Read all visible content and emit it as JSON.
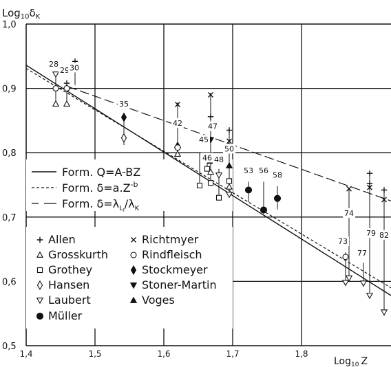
{
  "chart_data": {
    "type": "scatter",
    "ylabel_main": "Log",
    "ylabel_sub": "10",
    "ylabel_var": "δ",
    "ylabel_varsub": "K",
    "xlabel_main": "Log",
    "xlabel_sub": "10",
    "xlabel_var": "Z",
    "xlim": [
      1.4,
      1.93
    ],
    "ylim": [
      0.5,
      1.0
    ],
    "x_ticks": [
      "1,4",
      "1,5",
      "1,6",
      "1,7",
      "1,8"
    ],
    "x_tick_values": [
      1.4,
      1.5,
      1.6,
      1.7,
      1.8
    ],
    "y_ticks": [
      "1,0",
      "0,9",
      "0,8",
      "0,7",
      "0,6",
      "0,5"
    ],
    "y_tick_values": [
      1.0,
      0.9,
      0.8,
      0.7,
      0.6,
      0.5
    ],
    "grid": true,
    "fit_lines": [
      {
        "label": "Form. Q=A-BZ",
        "style": "solid",
        "x": [
          1.4,
          1.93
        ],
        "y": [
          0.936,
          0.578
        ]
      },
      {
        "label": "Form. δ=a.Z",
        "label_sup": "-b",
        "style": "dashed",
        "x": [
          1.4,
          1.93
        ],
        "y": [
          0.931,
          0.59
        ]
      },
      {
        "label": "Form. δ=λ",
        "label_sub1": "L",
        "label_sub1b": "I",
        "label_mid": "/λ",
        "label_sub2": "K",
        "style": "longdash",
        "x": [
          1.46,
          1.93
        ],
        "y": [
          0.903,
          0.725
        ]
      }
    ],
    "legend": [
      {
        "marker": "plus",
        "label": "Allen"
      },
      {
        "marker": "tri-open",
        "label": "Grosskurth"
      },
      {
        "marker": "square-open",
        "label": "Grothey"
      },
      {
        "marker": "diamond-open",
        "label": "Hansen"
      },
      {
        "marker": "tri-down-open",
        "label": "Laubert"
      },
      {
        "marker": "circle-filled",
        "label": "Müller"
      },
      {
        "marker": "cross",
        "label": "Richtmyer"
      },
      {
        "marker": "circle-open",
        "label": "Rindfleisch"
      },
      {
        "marker": "diamond-filled",
        "label": "Stockmeyer"
      },
      {
        "marker": "tri-down-filled",
        "label": "Stoner-Martin"
      },
      {
        "marker": "tri-filled",
        "label": "Voges"
      }
    ],
    "groups": [
      {
        "label": "28",
        "label_x": 1.44,
        "label_y": 0.934,
        "x": 1.443,
        "y_min": 0.876,
        "y_max": 0.924,
        "points": [
          {
            "m": "tri-down-open",
            "y": 0.922
          },
          {
            "m": "circle-open",
            "y": 0.9
          },
          {
            "m": "tri-open",
            "y": 0.876
          }
        ]
      },
      {
        "label": "29",
        "label_x": 1.456,
        "label_y": 0.924,
        "x": 1.459,
        "y_min": 0.876,
        "y_max": 0.912,
        "points": [
          {
            "m": "plus",
            "y": 0.908
          },
          {
            "m": "circle-open",
            "y": 0.9
          },
          {
            "m": "tri-open",
            "y": 0.876
          }
        ]
      },
      {
        "label": "30",
        "label_x": 1.47,
        "label_y": 0.928,
        "x": 1.471,
        "y_min": 0.905,
        "y_max": 0.944,
        "points": [
          {
            "m": "plus",
            "y": 0.942
          }
        ]
      },
      {
        "label": "35",
        "label_x": 1.542,
        "label_y": 0.872,
        "x": 1.542,
        "y_min": 0.812,
        "y_max": 0.86,
        "points": [
          {
            "m": "diamond-filled",
            "y": 0.855
          },
          {
            "m": "diamond-open",
            "y": 0.823
          }
        ]
      },
      {
        "label": "42",
        "label_x": 1.62,
        "label_y": 0.842,
        "x": 1.62,
        "y_min": 0.796,
        "y_max": 0.878,
        "points": [
          {
            "m": "cross",
            "y": 0.875
          },
          {
            "m": "tri-filled",
            "y": 0.812
          },
          {
            "m": "circle-open",
            "y": 0.808
          },
          {
            "m": "tri-open",
            "y": 0.798
          }
        ]
      },
      {
        "label": "45",
        "label_x": 1.658,
        "label_y": 0.816,
        "x": 1.652,
        "y_min": 0.747,
        "y_max": 0.8,
        "points": [
          {
            "m": "square-open",
            "y": 0.749
          }
        ]
      },
      {
        "label": "46",
        "label_x": 1.663,
        "label_y": 0.788,
        "x": 1.663,
        "y_min": 0.772,
        "y_max": 0.79,
        "points": [
          {
            "m": "square-open",
            "y": 0.775
          }
        ]
      },
      {
        "label": "47",
        "label_x": 1.671,
        "label_y": 0.837,
        "x": 1.668,
        "y_min": 0.752,
        "y_max": 0.893,
        "points": [
          {
            "m": "cross",
            "y": 0.89
          },
          {
            "m": "plus",
            "y": 0.856
          },
          {
            "m": "tri-down-filled",
            "y": 0.839
          },
          {
            "m": "tri-down-filled",
            "y": 0.82
          },
          {
            "m": "tri-filled",
            "y": 0.787
          },
          {
            "m": "tri-open",
            "y": 0.77
          },
          {
            "m": "square-open",
            "y": 0.753
          }
        ]
      },
      {
        "label": "48",
        "label_x": 1.68,
        "label_y": 0.785,
        "x": 1.68,
        "y_min": 0.728,
        "y_max": 0.775,
        "points": [
          {
            "m": "tri-down-open",
            "y": 0.765
          },
          {
            "m": "square-open",
            "y": 0.73
          }
        ]
      },
      {
        "label": "50",
        "label_x": 1.695,
        "label_y": 0.802,
        "x": 1.695,
        "y_min": 0.733,
        "y_max": 0.838,
        "points": [
          {
            "m": "plus",
            "y": 0.835
          },
          {
            "m": "cross",
            "y": 0.818
          },
          {
            "m": "tri-filled",
            "y": 0.78
          },
          {
            "m": "square-open",
            "y": 0.756
          },
          {
            "m": "tri-open",
            "y": 0.747
          },
          {
            "m": "tri-down-open",
            "y": 0.735
          }
        ]
      },
      {
        "label": "53",
        "label_x": 1.723,
        "label_y": 0.768,
        "x": 1.723,
        "y_min": 0.723,
        "y_max": 0.755,
        "points": [
          {
            "m": "circle-filled",
            "y": 0.742
          }
        ]
      },
      {
        "label": "56",
        "label_x": 1.745,
        "label_y": 0.768,
        "x": 1.745,
        "y_min": 0.705,
        "y_max": 0.755,
        "points": [
          {
            "m": "circle-filled",
            "y": 0.711
          }
        ]
      },
      {
        "label": "58",
        "label_x": 1.765,
        "label_y": 0.761,
        "x": 1.765,
        "y_min": 0.712,
        "y_max": 0.748,
        "points": [
          {
            "m": "circle-filled",
            "y": 0.729
          }
        ]
      },
      {
        "label": "73",
        "label_x": 1.86,
        "label_y": 0.658,
        "x": 1.864,
        "y_min": 0.596,
        "y_max": 0.645,
        "points": [
          {
            "m": "circle-open",
            "y": 0.638
          },
          {
            "m": "tri-down-open",
            "y": 0.598
          }
        ]
      },
      {
        "label": "74",
        "label_x": 1.869,
        "label_y": 0.702,
        "x": 1.869,
        "y_min": 0.603,
        "y_max": 0.745,
        "points": [
          {
            "m": "cross",
            "y": 0.744
          },
          {
            "m": "tri-down-open",
            "y": 0.605
          }
        ]
      },
      {
        "label": "77",
        "label_x": 1.888,
        "label_y": 0.64,
        "x": 1.89,
        "y_min": 0.595,
        "y_max": 0.629,
        "points": [
          {
            "m": "tri-down-open",
            "y": 0.597
          }
        ]
      },
      {
        "label": "79",
        "label_x": 1.901,
        "label_y": 0.671,
        "x": 1.899,
        "y_min": 0.576,
        "y_max": 0.77,
        "points": [
          {
            "m": "plus",
            "y": 0.768
          },
          {
            "m": "plus",
            "y": 0.752
          },
          {
            "m": "cross",
            "y": 0.746
          },
          {
            "m": "tri-down-open",
            "y": 0.578
          }
        ]
      },
      {
        "label": "82",
        "label_x": 1.92,
        "label_y": 0.668,
        "x": 1.92,
        "y_min": 0.55,
        "y_max": 0.744,
        "points": [
          {
            "m": "plus",
            "y": 0.742
          },
          {
            "m": "cross",
            "y": 0.727
          },
          {
            "m": "tri-down-open",
            "y": 0.552
          }
        ]
      }
    ]
  }
}
